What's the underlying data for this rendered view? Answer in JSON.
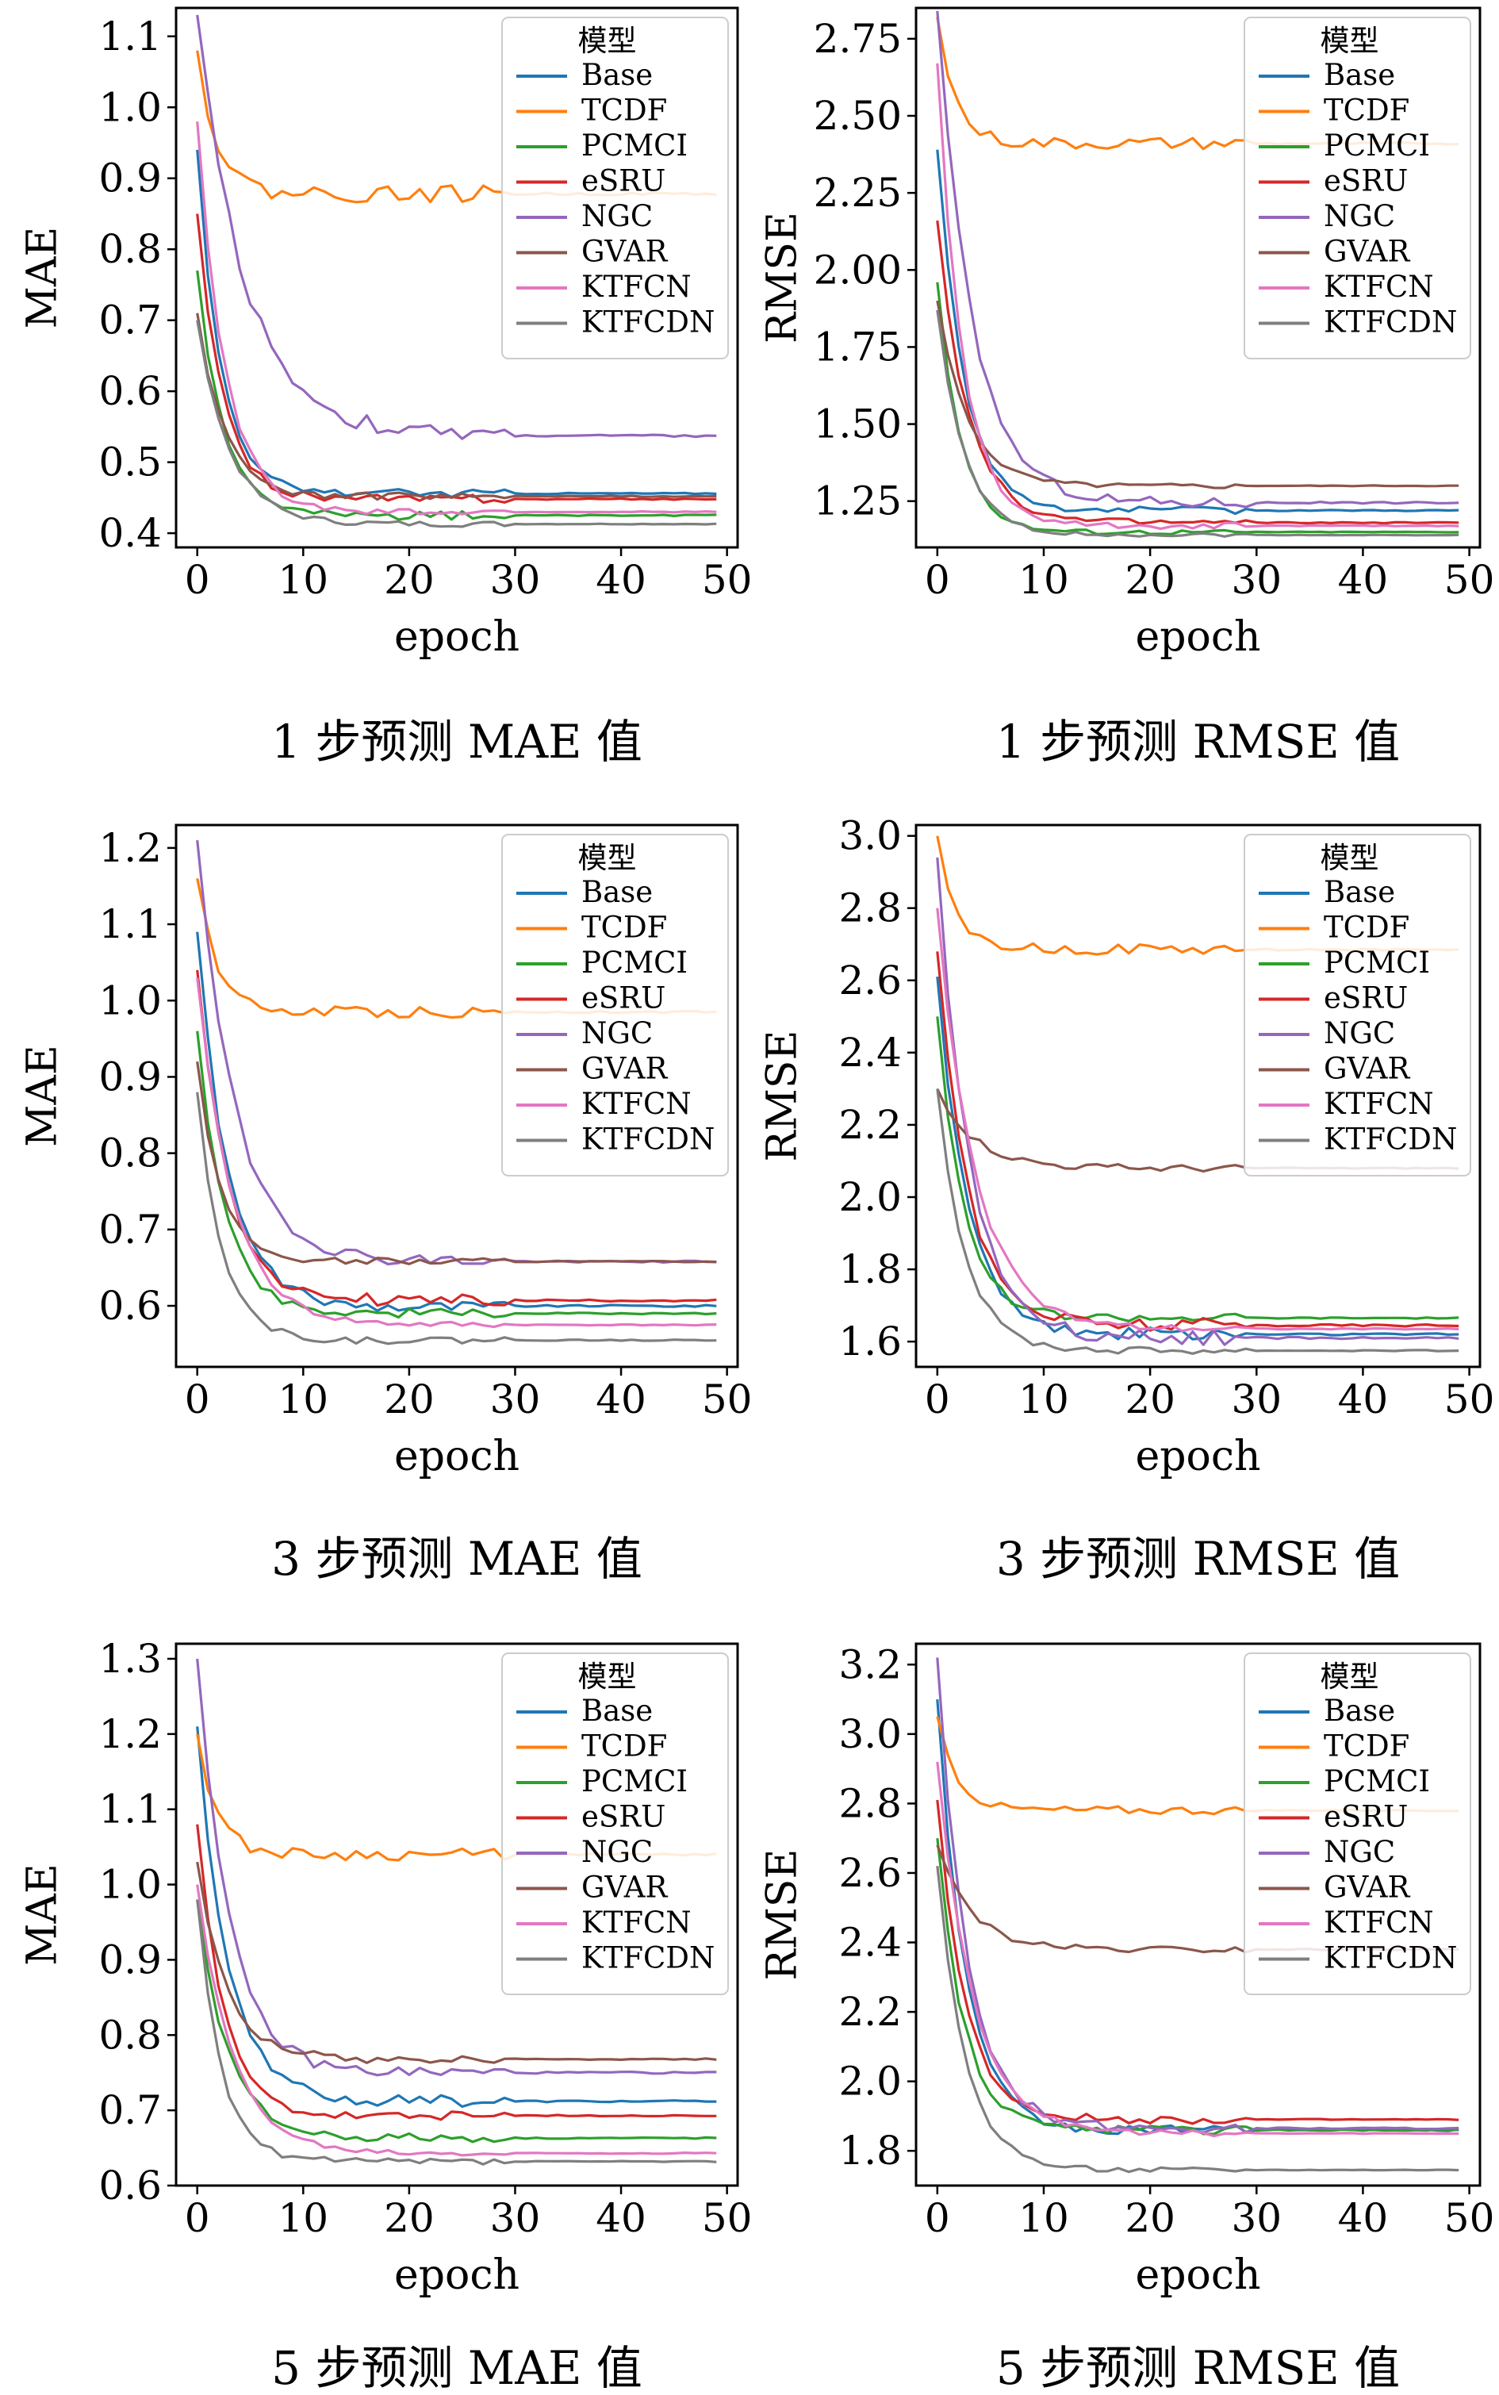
{
  "colors": {
    "Base": "#1f77b4",
    "TCDF": "#ff7f0e",
    "PCMCI": "#2ca02c",
    "eSRU": "#d62728",
    "NGC": "#9467bd",
    "GVAR": "#8c564b",
    "KTFCN": "#e377c2",
    "KTFCDN": "#7f7f7f"
  },
  "chart_data": [
    {
      "type": "line",
      "caption": "1 步预测 MAE 值",
      "xlabel": "epoch",
      "ylabel": "MAE",
      "xlim": [
        -2,
        51
      ],
      "ylim": [
        0.38,
        1.14
      ],
      "xticks": [
        0,
        10,
        20,
        30,
        40,
        50
      ],
      "yticks": [
        0.4,
        0.5,
        0.6,
        0.7,
        0.8,
        0.9,
        1.0,
        1.1
      ],
      "yfmt": 1,
      "legend": {
        "title": "模型",
        "placement": "upper right",
        "entries": [
          "Base",
          "TCDF",
          "PCMCI",
          "eSRU",
          "NGC",
          "GVAR",
          "KTFCN",
          "KTFCDN"
        ]
      },
      "series": [
        {
          "name": "Base",
          "start": 0.94,
          "end": 0.456,
          "rate": 0.45,
          "noise": 0.006
        },
        {
          "name": "TCDF",
          "start": 1.08,
          "end": 0.878,
          "rate": 0.55,
          "noise": 0.012
        },
        {
          "name": "PCMCI",
          "start": 0.77,
          "end": 0.425,
          "rate": 0.4,
          "noise": 0.006
        },
        {
          "name": "eSRU",
          "start": 0.85,
          "end": 0.448,
          "rate": 0.42,
          "noise": 0.006
        },
        {
          "name": "NGC",
          "start": 1.13,
          "end": 0.537,
          "rate": 0.22,
          "noise": 0.012
        },
        {
          "name": "GVAR",
          "start": 0.71,
          "end": 0.452,
          "rate": 0.4,
          "noise": 0.005
        },
        {
          "name": "KTFCN",
          "start": 0.98,
          "end": 0.43,
          "rate": 0.38,
          "noise": 0.005
        },
        {
          "name": "KTFCDN",
          "start": 0.7,
          "end": 0.413,
          "rate": 0.33,
          "noise": 0.004
        }
      ]
    },
    {
      "type": "line",
      "caption": "1 步预测 RMSE 值",
      "xlabel": "epoch",
      "ylabel": "RMSE",
      "xlim": [
        -2,
        51
      ],
      "ylim": [
        1.1,
        2.85
      ],
      "xticks": [
        0,
        10,
        20,
        30,
        40,
        50
      ],
      "yticks": [
        1.25,
        1.5,
        1.75,
        2.0,
        2.25,
        2.5,
        2.75
      ],
      "yfmt": 2,
      "legend": {
        "title": "模型",
        "placement": "upper right",
        "entries": [
          "Base",
          "TCDF",
          "PCMCI",
          "eSRU",
          "NGC",
          "GVAR",
          "KTFCN",
          "KTFCDN"
        ]
      },
      "series": [
        {
          "name": "Base",
          "start": 2.39,
          "end": 1.22,
          "rate": 0.4,
          "noise": 0.012
        },
        {
          "name": "TCDF",
          "start": 2.82,
          "end": 2.41,
          "rate": 0.6,
          "noise": 0.02
        },
        {
          "name": "PCMCI",
          "start": 1.96,
          "end": 1.15,
          "rate": 0.45,
          "noise": 0.008
        },
        {
          "name": "eSRU",
          "start": 2.16,
          "end": 1.18,
          "rate": 0.35,
          "noise": 0.012
        },
        {
          "name": "NGC",
          "start": 2.84,
          "end": 1.245,
          "rate": 0.3,
          "noise": 0.018
        },
        {
          "name": "GVAR",
          "start": 1.9,
          "end": 1.3,
          "rate": 0.35,
          "noise": 0.008
        },
        {
          "name": "KTFCN",
          "start": 2.67,
          "end": 1.17,
          "rate": 0.42,
          "noise": 0.01
        },
        {
          "name": "KTFCDN",
          "start": 1.87,
          "end": 1.14,
          "rate": 0.4,
          "noise": 0.006
        }
      ]
    },
    {
      "type": "line",
      "caption": "3 步预测 MAE 值",
      "xlabel": "epoch",
      "ylabel": "MAE",
      "xlim": [
        -2,
        51
      ],
      "ylim": [
        0.52,
        1.23
      ],
      "xticks": [
        0,
        10,
        20,
        30,
        40,
        50
      ],
      "yticks": [
        0.6,
        0.7,
        0.8,
        0.9,
        1.0,
        1.1,
        1.2
      ],
      "yfmt": 1,
      "legend": {
        "title": "模型",
        "placement": "upper right",
        "entries": [
          "Base",
          "TCDF",
          "PCMCI",
          "eSRU",
          "NGC",
          "GVAR",
          "KTFCN",
          "KTFCDN"
        ]
      },
      "series": [
        {
          "name": "Base",
          "start": 1.09,
          "end": 0.6,
          "rate": 0.35,
          "noise": 0.008
        },
        {
          "name": "TCDF",
          "start": 1.16,
          "end": 0.985,
          "rate": 0.55,
          "noise": 0.008
        },
        {
          "name": "PCMCI",
          "start": 0.96,
          "end": 0.59,
          "rate": 0.38,
          "noise": 0.006
        },
        {
          "name": "eSRU",
          "start": 1.04,
          "end": 0.607,
          "rate": 0.35,
          "noise": 0.008
        },
        {
          "name": "NGC",
          "start": 1.21,
          "end": 0.658,
          "rate": 0.28,
          "noise": 0.008
        },
        {
          "name": "GVAR",
          "start": 0.92,
          "end": 0.658,
          "rate": 0.45,
          "noise": 0.005
        },
        {
          "name": "KTFCN",
          "start": 1.03,
          "end": 0.575,
          "rate": 0.3,
          "noise": 0.004
        },
        {
          "name": "KTFCDN",
          "start": 0.88,
          "end": 0.555,
          "rate": 0.42,
          "noise": 0.005
        }
      ]
    },
    {
      "type": "line",
      "caption": "3 步预测 RMSE 值",
      "xlabel": "epoch",
      "ylabel": "RMSE",
      "xlim": [
        -2,
        51
      ],
      "ylim": [
        1.53,
        3.03
      ],
      "xticks": [
        0,
        10,
        20,
        30,
        40,
        50
      ],
      "yticks": [
        1.6,
        1.8,
        2.0,
        2.2,
        2.4,
        2.6,
        2.8,
        3.0
      ],
      "yfmt": 1,
      "legend": {
        "title": "模型",
        "placement": "upper right",
        "entries": [
          "Base",
          "TCDF",
          "PCMCI",
          "eSRU",
          "NGC",
          "GVAR",
          "KTFCN",
          "KTFCDN"
        ]
      },
      "series": [
        {
          "name": "Base",
          "start": 2.61,
          "end": 1.62,
          "rate": 0.35,
          "noise": 0.018
        },
        {
          "name": "TCDF",
          "start": 3.0,
          "end": 2.685,
          "rate": 0.55,
          "noise": 0.015
        },
        {
          "name": "PCMCI",
          "start": 2.5,
          "end": 1.665,
          "rate": 0.4,
          "noise": 0.012
        },
        {
          "name": "eSRU",
          "start": 2.68,
          "end": 1.645,
          "rate": 0.35,
          "noise": 0.02
        },
        {
          "name": "NGC",
          "start": 2.94,
          "end": 1.61,
          "rate": 0.33,
          "noise": 0.02
        },
        {
          "name": "GVAR",
          "start": 2.3,
          "end": 2.08,
          "rate": 0.28,
          "noise": 0.01
        },
        {
          "name": "KTFCN",
          "start": 2.8,
          "end": 1.635,
          "rate": 0.28,
          "noise": 0.01
        },
        {
          "name": "KTFCDN",
          "start": 2.3,
          "end": 1.575,
          "rate": 0.38,
          "noise": 0.01
        }
      ]
    },
    {
      "type": "line",
      "caption": "5 步预测 MAE 值",
      "xlabel": "epoch",
      "ylabel": "MAE",
      "xlim": [
        -2,
        51
      ],
      "ylim": [
        0.6,
        1.32
      ],
      "xticks": [
        0,
        10,
        20,
        30,
        40,
        50
      ],
      "yticks": [
        0.6,
        0.7,
        0.8,
        0.9,
        1.0,
        1.1,
        1.2,
        1.3
      ],
      "yfmt": 1,
      "legend": {
        "title": "模型",
        "placement": "upper right",
        "entries": [
          "Base",
          "TCDF",
          "PCMCI",
          "eSRU",
          "NGC",
          "GVAR",
          "KTFCN",
          "KTFCDN"
        ]
      },
      "series": [
        {
          "name": "Base",
          "start": 1.21,
          "end": 0.712,
          "rate": 0.35,
          "noise": 0.008
        },
        {
          "name": "TCDF",
          "start": 1.2,
          "end": 1.04,
          "rate": 0.55,
          "noise": 0.008
        },
        {
          "name": "PCMCI",
          "start": 0.98,
          "end": 0.663,
          "rate": 0.35,
          "noise": 0.006
        },
        {
          "name": "eSRU",
          "start": 1.08,
          "end": 0.693,
          "rate": 0.4,
          "noise": 0.006
        },
        {
          "name": "NGC",
          "start": 1.3,
          "end": 0.75,
          "rate": 0.33,
          "noise": 0.008
        },
        {
          "name": "GVAR",
          "start": 1.03,
          "end": 0.768,
          "rate": 0.35,
          "noise": 0.006
        },
        {
          "name": "KTFCN",
          "start": 1.0,
          "end": 0.643,
          "rate": 0.3,
          "noise": 0.004
        },
        {
          "name": "KTFCDN",
          "start": 0.98,
          "end": 0.632,
          "rate": 0.45,
          "noise": 0.005
        }
      ]
    },
    {
      "type": "line",
      "caption": "5 步预测 RMSE 值",
      "xlabel": "epoch",
      "ylabel": "RMSE",
      "xlim": [
        -2,
        51
      ],
      "ylim": [
        1.7,
        3.26
      ],
      "xticks": [
        0,
        10,
        20,
        30,
        40,
        50
      ],
      "yticks": [
        1.8,
        2.0,
        2.2,
        2.4,
        2.6,
        2.8,
        3.0,
        3.2
      ],
      "yfmt": 1,
      "legend": {
        "title": "模型",
        "placement": "upper right",
        "entries": [
          "Base",
          "TCDF",
          "PCMCI",
          "eSRU",
          "NGC",
          "GVAR",
          "KTFCN",
          "KTFCDN"
        ]
      },
      "series": [
        {
          "name": "Base",
          "start": 3.1,
          "end": 1.86,
          "rate": 0.38,
          "noise": 0.015
        },
        {
          "name": "TCDF",
          "start": 3.05,
          "end": 2.78,
          "rate": 0.55,
          "noise": 0.012
        },
        {
          "name": "PCMCI",
          "start": 2.7,
          "end": 1.86,
          "rate": 0.4,
          "noise": 0.012
        },
        {
          "name": "eSRU",
          "start": 2.81,
          "end": 1.89,
          "rate": 0.38,
          "noise": 0.012
        },
        {
          "name": "NGC",
          "start": 3.22,
          "end": 1.865,
          "rate": 0.35,
          "noise": 0.015
        },
        {
          "name": "GVAR",
          "start": 2.68,
          "end": 2.38,
          "rate": 0.32,
          "noise": 0.01
        },
        {
          "name": "KTFCN",
          "start": 2.92,
          "end": 1.85,
          "rate": 0.3,
          "noise": 0.008
        },
        {
          "name": "KTFCDN",
          "start": 2.62,
          "end": 1.745,
          "rate": 0.38,
          "noise": 0.008
        }
      ]
    }
  ]
}
